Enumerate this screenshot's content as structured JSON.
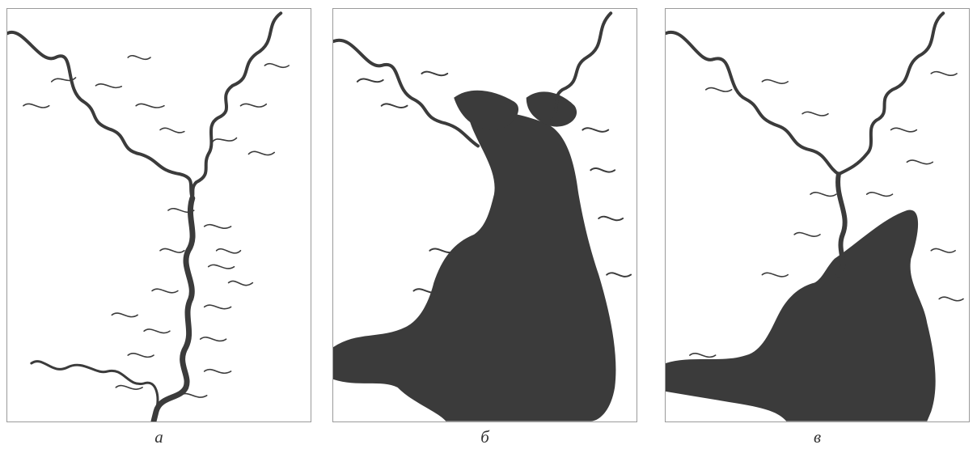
{
  "figure": {
    "colors": {
      "water": "#3b3b3b",
      "background": "#ffffff",
      "frame": "#9a9a9a"
    },
    "panels": [
      {
        "id": "a",
        "caption": "а",
        "flood_state": "low-water"
      },
      {
        "id": "b",
        "caption": "б",
        "flood_state": "high-water"
      },
      {
        "id": "c",
        "caption": "в",
        "flood_state": "intermediate"
      }
    ]
  }
}
